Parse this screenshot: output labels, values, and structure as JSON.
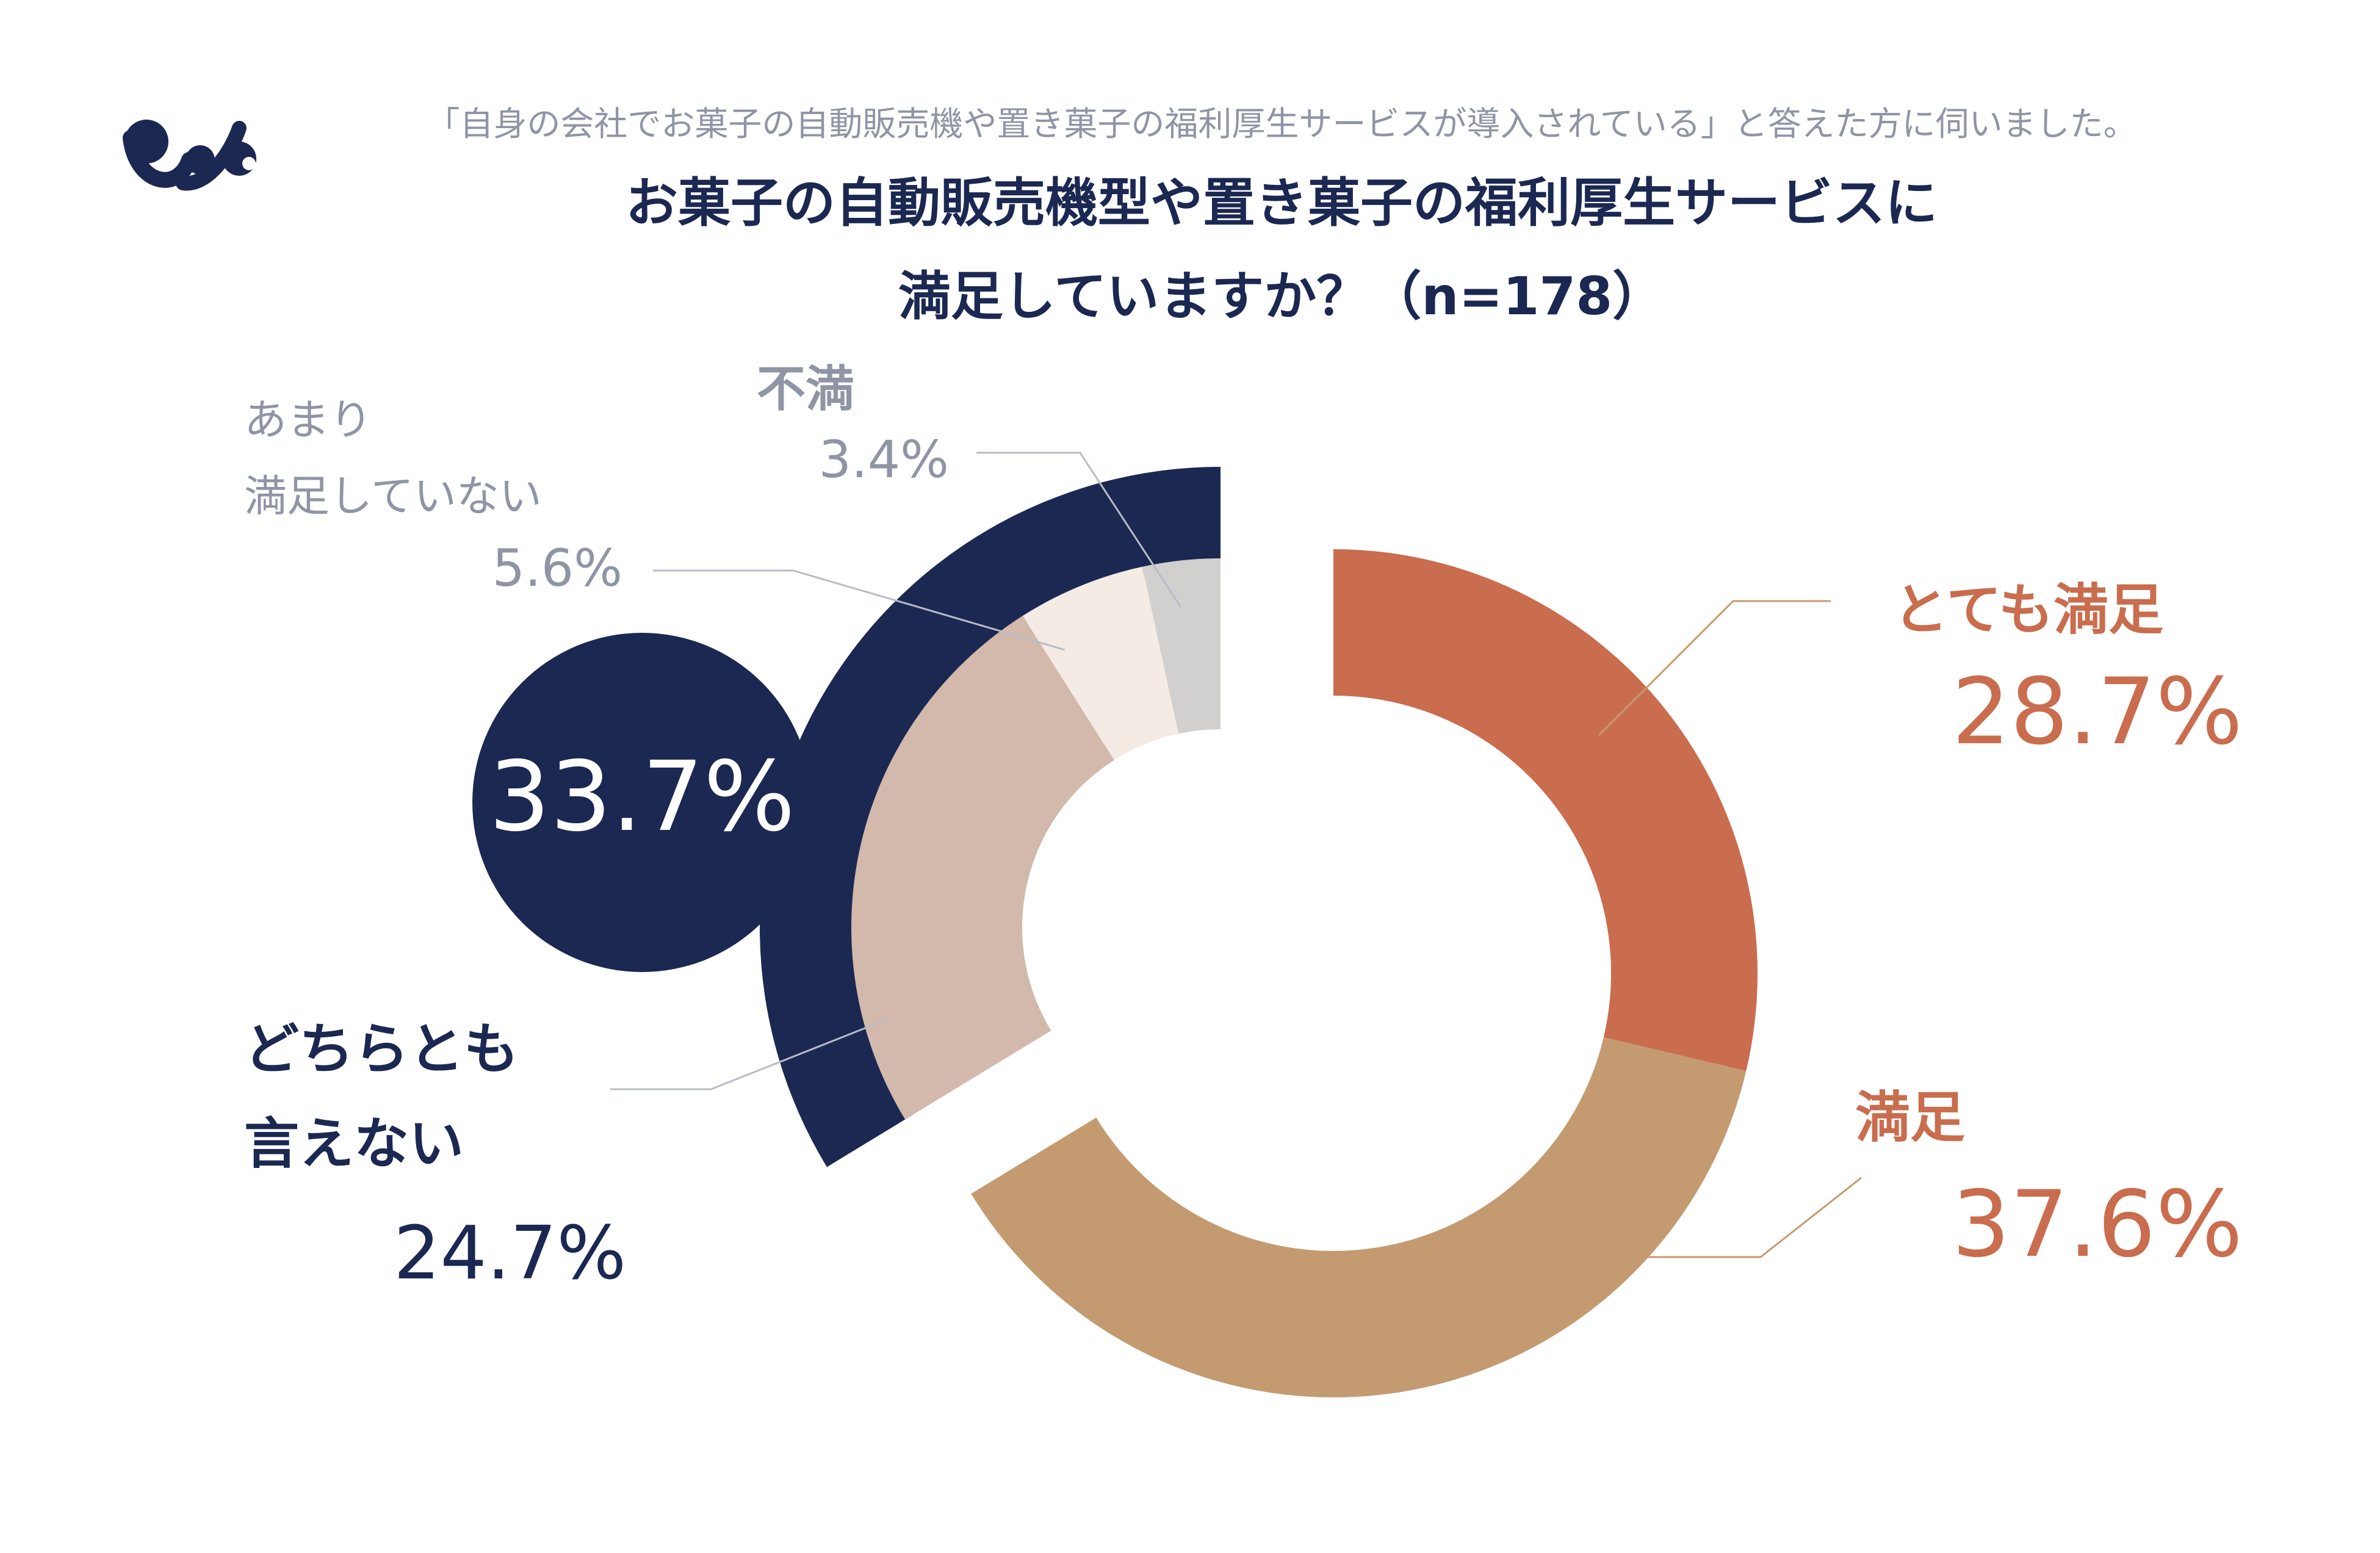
{
  "header": {
    "subtitle": "「自身の会社でお菓子の自動販売機や置き菓子の福利厚生サービスが導入されている」と答えた方に伺いました。",
    "title_line1": "お菓子の自動販売機型や置き菓子の福利厚生サービスに",
    "title_line2": "満足していますか？（n=178）",
    "logo_icon": "brand-logo-icon"
  },
  "colors": {
    "navy": "#1b2852",
    "very_satisfied": "#c96d4e",
    "satisfied": "#c49b71",
    "neutral": "#d2b9ab",
    "somewhat_dissatisfied": "#f4ebe4",
    "dissatisfied": "#d2d0cf",
    "gray_text": "#8f95a5"
  },
  "chart_data": {
    "type": "pie",
    "donut": true,
    "categories": [
      "とても満足",
      "満足",
      "どちらとも言えない",
      "あまり満足していない",
      "不満"
    ],
    "values": [
      28.7,
      37.6,
      24.7,
      5.6,
      3.4
    ],
    "unit": "%",
    "n": 178,
    "labels": [
      {
        "name_lines": [
          "とても満足"
        ],
        "value_text": "28.7%"
      },
      {
        "name_lines": [
          "満足"
        ],
        "value_text": "37.6%"
      },
      {
        "name_lines": [
          "どちらとも",
          "言えない"
        ],
        "value_text": "24.7%"
      },
      {
        "name_lines": [
          "あまり",
          "満足していない"
        ],
        "value_text": "5.6%"
      },
      {
        "name_lines": [
          "不満"
        ],
        "value_text": "3.4%"
      }
    ],
    "group_total": {
      "label": "33.7%",
      "categories": [
        "どちらとも言えない",
        "あまり満足していない",
        "不満"
      ],
      "value": 33.7
    }
  }
}
